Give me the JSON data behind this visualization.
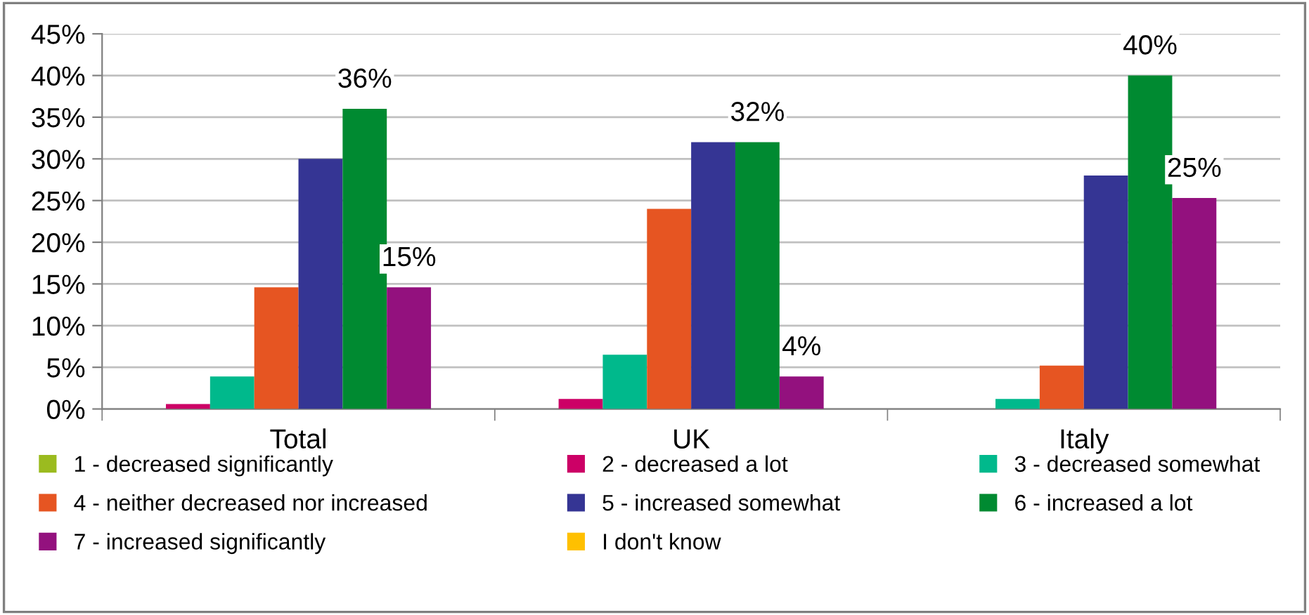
{
  "chart_data": {
    "type": "bar",
    "categories": [
      "Total",
      "UK",
      "Italy"
    ],
    "series": [
      {
        "name": "1 - decreased significantly",
        "color": "#9bbb1f",
        "values": [
          0,
          0,
          0
        ]
      },
      {
        "name": "2 - decreased a lot",
        "color": "#cc0066",
        "values": [
          0.6,
          1.2,
          0
        ]
      },
      {
        "name": "3 - decreased somewhat",
        "color": "#00b98c",
        "values": [
          3.9,
          6.5,
          1.2
        ]
      },
      {
        "name": "4 - neither decreased nor increased",
        "color": "#e65522",
        "values": [
          14.6,
          24.0,
          5.2
        ]
      },
      {
        "name": "5 - increased somewhat",
        "color": "#353594",
        "values": [
          30.0,
          32.0,
          28.0
        ]
      },
      {
        "name": "6 - increased a lot",
        "color": "#008a31",
        "values": [
          36,
          32,
          40
        ],
        "value_labels": [
          "36%",
          "32%",
          "40%"
        ]
      },
      {
        "name": "7 - increased significantly",
        "color": "#93117e",
        "values": [
          14.6,
          3.9,
          25.3
        ],
        "value_labels": [
          "15%",
          "4%",
          "25%"
        ]
      },
      {
        "name": "I don't know",
        "color": "#ffc000",
        "values": [
          0,
          0,
          0
        ]
      }
    ],
    "ylim": [
      0,
      45
    ],
    "yticks": [
      {
        "value": 0,
        "label": "0%"
      },
      {
        "value": 5,
        "label": "5%"
      },
      {
        "value": 10,
        "label": "10%"
      },
      {
        "value": 15,
        "label": "15%"
      },
      {
        "value": 20,
        "label": "20%"
      },
      {
        "value": 25,
        "label": "25%"
      },
      {
        "value": 30,
        "label": "30%"
      },
      {
        "value": 35,
        "label": "35%"
      },
      {
        "value": 40,
        "label": "40%"
      },
      {
        "value": 45,
        "label": "45%"
      }
    ],
    "grid": "y",
    "legend": "bottom"
  }
}
